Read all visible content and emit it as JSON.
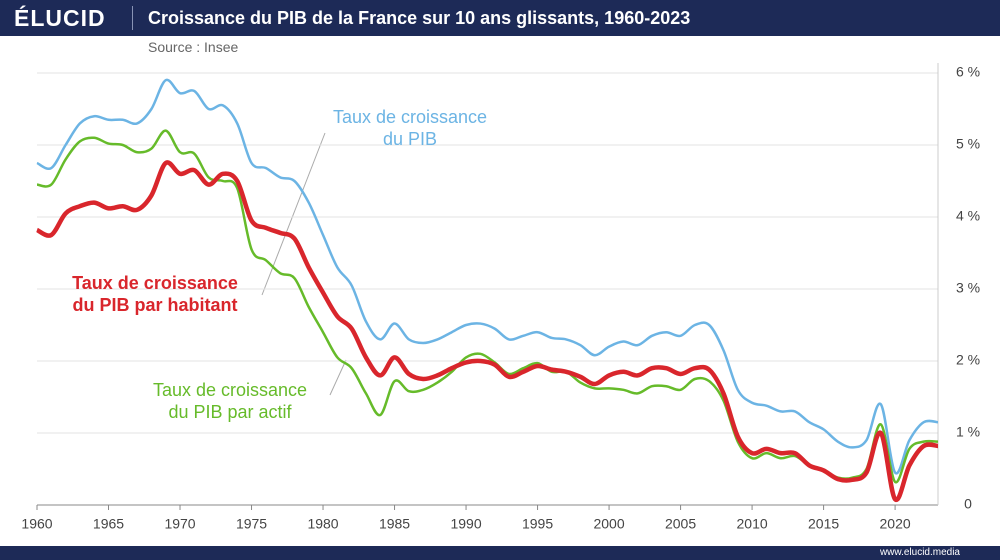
{
  "header": {
    "logo": "ÉLUCID"
  },
  "footer": {
    "url": "www.elucid.media"
  },
  "chart_data": {
    "type": "line",
    "title": "Croissance du PIB de la France sur 10 ans glissants, 1960-2023",
    "subtitle": "Source : Insee",
    "x": [
      1960,
      1961,
      1962,
      1963,
      1964,
      1965,
      1966,
      1967,
      1968,
      1969,
      1970,
      1971,
      1972,
      1973,
      1974,
      1975,
      1976,
      1977,
      1978,
      1979,
      1980,
      1981,
      1982,
      1983,
      1984,
      1985,
      1986,
      1987,
      1988,
      1989,
      1990,
      1991,
      1992,
      1993,
      1994,
      1995,
      1996,
      1997,
      1998,
      1999,
      2000,
      2001,
      2002,
      2003,
      2004,
      2005,
      2006,
      2007,
      2008,
      2009,
      2010,
      2011,
      2012,
      2013,
      2014,
      2015,
      2016,
      2017,
      2018,
      2019,
      2020,
      2021,
      2022,
      2023
    ],
    "xlim": [
      1960,
      2023
    ],
    "xticks": [
      1960,
      1965,
      1970,
      1975,
      1980,
      1985,
      1990,
      1995,
      2000,
      2005,
      2010,
      2015,
      2020
    ],
    "ylim": [
      0,
      6
    ],
    "yticks": [
      0,
      {
        "value": 1,
        "label": "1 %"
      },
      {
        "value": 2,
        "label": "2 %"
      },
      {
        "value": 3,
        "label": "3 %"
      },
      {
        "value": 4,
        "label": "4 %"
      },
      {
        "value": 5,
        "label": "5 %"
      },
      {
        "value": 6,
        "label": "6 %"
      }
    ],
    "grid": true,
    "series": [
      {
        "name": "Taux de croissance\ndu PIB",
        "color": "#6cb4e4",
        "values": [
          4.75,
          4.68,
          5.0,
          5.3,
          5.4,
          5.35,
          5.35,
          5.3,
          5.5,
          5.9,
          5.72,
          5.75,
          5.5,
          5.55,
          5.3,
          4.75,
          4.68,
          4.55,
          4.5,
          4.2,
          3.75,
          3.3,
          3.05,
          2.55,
          2.3,
          2.52,
          2.3,
          2.25,
          2.3,
          2.4,
          2.5,
          2.52,
          2.45,
          2.3,
          2.35,
          2.4,
          2.32,
          2.3,
          2.22,
          2.08,
          2.2,
          2.27,
          2.22,
          2.35,
          2.4,
          2.35,
          2.5,
          2.5,
          2.15,
          1.6,
          1.42,
          1.38,
          1.3,
          1.3,
          1.15,
          1.05,
          0.88,
          0.8,
          0.9,
          1.4,
          0.45,
          0.9,
          1.15,
          1.15
        ]
      },
      {
        "name": "Taux de croissance\ndu PIB par habitant",
        "color": "#d9262c",
        "values": [
          3.82,
          3.75,
          4.05,
          4.15,
          4.2,
          4.12,
          4.15,
          4.1,
          4.3,
          4.75,
          4.6,
          4.65,
          4.45,
          4.6,
          4.5,
          3.95,
          3.85,
          3.78,
          3.7,
          3.3,
          2.95,
          2.62,
          2.45,
          2.05,
          1.8,
          2.05,
          1.82,
          1.75,
          1.8,
          1.9,
          1.98,
          2.0,
          1.95,
          1.78,
          1.85,
          1.93,
          1.88,
          1.85,
          1.78,
          1.68,
          1.8,
          1.85,
          1.8,
          1.9,
          1.9,
          1.82,
          1.9,
          1.88,
          1.55,
          0.95,
          0.72,
          0.78,
          0.72,
          0.72,
          0.55,
          0.48,
          0.36,
          0.35,
          0.45,
          1.0,
          0.08,
          0.55,
          0.82,
          0.82
        ]
      },
      {
        "name": "Taux de croissance\ndu PIB par actif",
        "color": "#66bb2a",
        "values": [
          4.45,
          4.45,
          4.8,
          5.05,
          5.1,
          5.02,
          5.0,
          4.9,
          4.95,
          5.2,
          4.9,
          4.88,
          4.55,
          4.5,
          4.4,
          3.55,
          3.4,
          3.22,
          3.15,
          2.75,
          2.4,
          2.05,
          1.9,
          1.55,
          1.25,
          1.72,
          1.58,
          1.6,
          1.7,
          1.85,
          2.05,
          2.1,
          1.98,
          1.82,
          1.9,
          1.97,
          1.85,
          1.85,
          1.7,
          1.62,
          1.62,
          1.6,
          1.55,
          1.65,
          1.65,
          1.6,
          1.75,
          1.72,
          1.45,
          0.88,
          0.65,
          0.72,
          0.65,
          0.68,
          0.55,
          0.48,
          0.38,
          0.38,
          0.5,
          1.12,
          0.32,
          0.78,
          0.88,
          0.88
        ]
      }
    ]
  }
}
